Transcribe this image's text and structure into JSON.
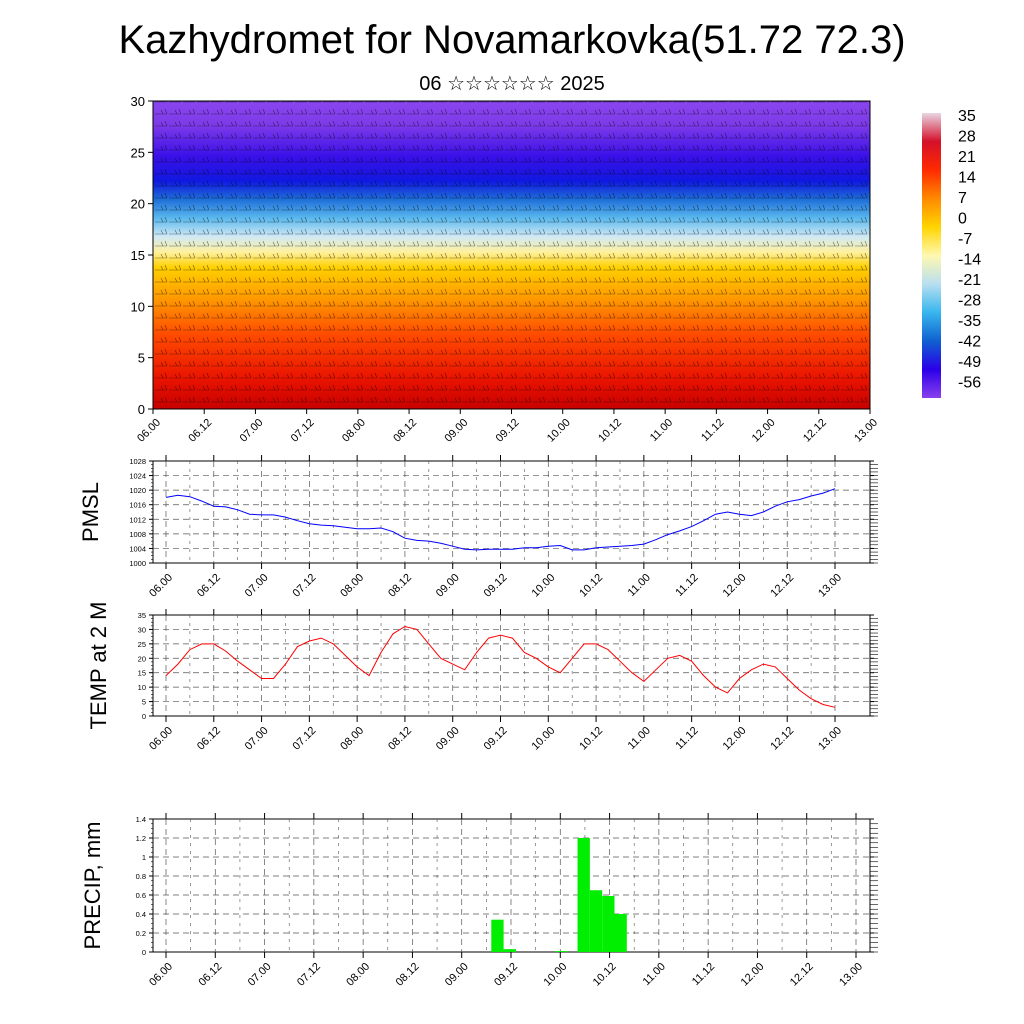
{
  "title": "Kazhydromet for Novamarkovka(51.72 72.3)",
  "subtitle": "06 ☆☆☆☆☆☆ 2025",
  "time_labels": [
    "06.00",
    "06.12",
    "07.00",
    "07.12",
    "08.00",
    "08.12",
    "09.00",
    "09.12",
    "10.00",
    "10.12",
    "11.00",
    "11.12",
    "12.00",
    "12.12",
    "13.00"
  ],
  "colors": {
    "pmsl_line": "#0000ff",
    "temp_line": "#ff0000",
    "precip_bar": "#00ee00",
    "colorbar": [
      "#e8d6e4",
      "#d4102a",
      "#ff2a00",
      "#ff8a00",
      "#ffd400",
      "#fff8b0",
      "#b8dff0",
      "#38b6ee",
      "#1060d0",
      "#2a00e8",
      "#8a40ee"
    ]
  },
  "chart_data": [
    {
      "type": "heatmap",
      "description_id": "cross-section",
      "ylim": [
        0,
        30
      ],
      "yticks": [
        0,
        5,
        10,
        15,
        20,
        25,
        30
      ],
      "x_tick_labels": [
        "06.00",
        "06.12",
        "07.00",
        "07.12",
        "08.00",
        "08.12",
        "09.00",
        "09.12",
        "10.00",
        "10.12",
        "11.00",
        "11.12",
        "12.00",
        "12.12",
        "13.00"
      ],
      "colorbar_labels": [
        "35",
        "28",
        "21",
        "14",
        "7",
        "0",
        "-7",
        "-14",
        "-21",
        "-28",
        "-35",
        "-42",
        "-49",
        "-56"
      ],
      "overlay": "wind barbs"
    },
    {
      "type": "line",
      "ylabel": "PMSL",
      "ylim": [
        1000,
        1028
      ],
      "yticks": [
        1000,
        1004,
        1008,
        1012,
        1016,
        1020,
        1024,
        1028
      ],
      "x_tick_labels": [
        "06.00",
        "06.12",
        "07.00",
        "07.12",
        "08.00",
        "08.12",
        "09.00",
        "09.12",
        "10.00",
        "10.12",
        "11.00",
        "11.12",
        "12.00",
        "12.12",
        "13.00"
      ],
      "x": [
        0,
        0.25,
        0.5,
        0.75,
        1,
        1.25,
        1.5,
        1.75,
        2,
        2.25,
        2.5,
        2.75,
        3,
        3.25,
        3.5,
        3.75,
        4,
        4.25,
        4.5,
        4.75,
        5,
        5.25,
        5.5,
        5.75,
        6,
        6.25,
        6.5,
        6.75,
        7,
        7.25,
        7.5,
        7.75,
        8,
        8.25,
        8.5,
        8.75,
        9,
        9.25,
        9.5,
        9.75,
        10,
        10.25,
        10.5,
        10.75,
        11,
        11.25,
        11.5,
        11.75,
        12,
        12.25,
        12.5,
        12.75,
        13,
        13.25,
        13.5,
        13.75,
        14
      ],
      "values": [
        1018,
        1018.6,
        1018.2,
        1017,
        1015.6,
        1015.4,
        1014.6,
        1013.4,
        1013.2,
        1013.2,
        1012.6,
        1011.6,
        1010.8,
        1010.4,
        1010.2,
        1009.8,
        1009.4,
        1009.4,
        1009.6,
        1008.6,
        1006.8,
        1006.2,
        1006,
        1005.4,
        1004.6,
        1003.8,
        1003.6,
        1003.8,
        1003.8,
        1003.8,
        1004.2,
        1004.2,
        1004.6,
        1004.8,
        1003.6,
        1003.6,
        1004.2,
        1004.4,
        1004.6,
        1004.8,
        1005.2,
        1006.4,
        1007.8,
        1008.8,
        1010,
        1011.6,
        1013.4,
        1014,
        1013.4,
        1013,
        1014,
        1015.6,
        1016.8,
        1017.4,
        1018.4,
        1019.2,
        1020.4
      ]
    },
    {
      "type": "line",
      "ylabel": "TEMP at 2 M",
      "ylim": [
        0,
        35
      ],
      "yticks": [
        0,
        5,
        10,
        15,
        20,
        25,
        30,
        35
      ],
      "x_tick_labels": [
        "06.00",
        "06.12",
        "07.00",
        "07.12",
        "08.00",
        "08.12",
        "09.00",
        "09.12",
        "10.00",
        "10.12",
        "11.00",
        "11.12",
        "12.00",
        "12.12",
        "13.00"
      ],
      "x": [
        0,
        0.5,
        1,
        1.5,
        2,
        2.5,
        3,
        3.5,
        4,
        4.5,
        5,
        5.5,
        6,
        6.5,
        7,
        7.5,
        8,
        8.5,
        9,
        9.5,
        10,
        10.5,
        11,
        11.5,
        12,
        12.5,
        13,
        13.5,
        14,
        14.5,
        15,
        15.5,
        16,
        16.5,
        17,
        17.5,
        18,
        18.5,
        19,
        19.5,
        20,
        20.5,
        21,
        21.5,
        22,
        22.5,
        23,
        23.5,
        24,
        24.5,
        25,
        25.5,
        26,
        26.5,
        27,
        27.5,
        28
      ],
      "values": [
        14,
        18,
        23,
        25,
        25,
        22.5,
        19,
        16,
        13,
        13,
        18,
        24,
        26,
        27,
        25,
        21,
        17,
        14,
        22,
        28.5,
        31,
        30,
        25,
        20,
        18,
        16,
        22,
        27,
        28,
        27,
        22,
        20,
        17,
        15,
        20,
        25,
        25,
        23,
        19,
        15,
        12,
        16,
        20,
        21,
        19,
        14,
        10,
        8,
        13,
        16,
        18,
        17,
        13,
        9,
        6,
        4,
        3
      ]
    },
    {
      "type": "bar",
      "ylabel": "PRECIP, mm",
      "ylim": [
        0,
        1.4
      ],
      "yticks": [
        0,
        0.2,
        0.4,
        0.6,
        0.8,
        1.0,
        1.2,
        1.4
      ],
      "x_tick_labels": [
        "06.00",
        "06.12",
        "07.00",
        "07.12",
        "08.00",
        "08.12",
        "09.00",
        "09.12",
        "10.00",
        "10.12",
        "11.00",
        "11.12",
        "12.00",
        "12.12",
        "13.00"
      ],
      "bars": [
        {
          "x": 6.6,
          "value": 0.34
        },
        {
          "x": 6.85,
          "value": 0.03
        },
        {
          "x": 7.9,
          "value": 0.01
        },
        {
          "x": 8.35,
          "value": 1.2
        },
        {
          "x": 8.6,
          "value": 0.65
        },
        {
          "x": 8.85,
          "value": 0.59
        },
        {
          "x": 9.1,
          "value": 0.4
        }
      ]
    }
  ]
}
